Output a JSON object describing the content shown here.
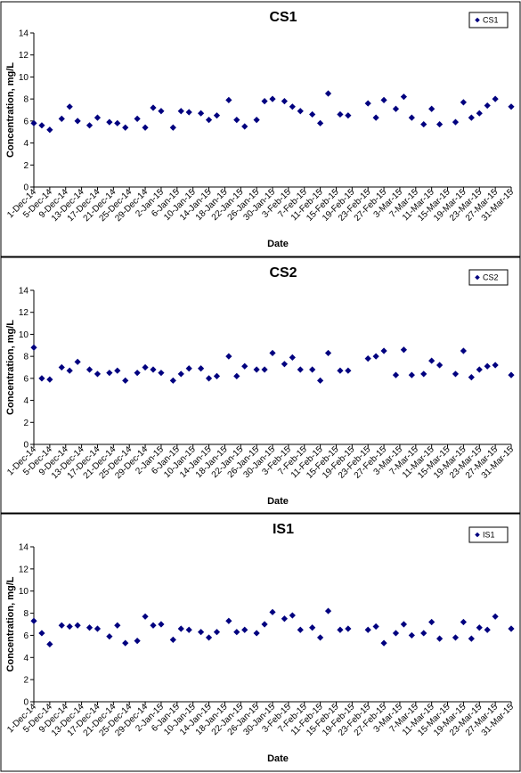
{
  "chart_data": [
    {
      "type": "scatter",
      "title": "CS1",
      "xlabel": "Date",
      "ylabel": "Concentration, mg/L",
      "ylim": [
        0,
        14
      ],
      "yticks": [
        0,
        2,
        4,
        6,
        8,
        10,
        12,
        14
      ],
      "xlim": [
        "2014-12-01",
        "2015-03-31"
      ],
      "xtick_labels": [
        "1-Dec-14",
        "5-Dec-14",
        "9-Dec-14",
        "13-Dec-14",
        "17-Dec-14",
        "21-Dec-14",
        "25-Dec-14",
        "29-Dec-14",
        "2-Jan-15",
        "6-Jan-15",
        "10-Jan-15",
        "14-Jan-15",
        "18-Jan-15",
        "22-Jan-15",
        "26-Jan-15",
        "30-Jan-15",
        "3-Feb-15",
        "7-Feb-15",
        "11-Feb-15",
        "15-Feb-15",
        "19-Feb-15",
        "23-Feb-15",
        "27-Feb-15",
        "3-Mar-15",
        "7-Mar-15",
        "11-Mar-15",
        "15-Mar-15",
        "19-Mar-15",
        "23-Mar-15",
        "27-Mar-15",
        "31-Mar-15"
      ],
      "legend": "top-right",
      "series": [
        {
          "name": "CS1",
          "color": "#00007F",
          "points": [
            [
              "2014-12-01",
              5.8
            ],
            [
              "2014-12-03",
              5.6
            ],
            [
              "2014-12-05",
              5.2
            ],
            [
              "2014-12-08",
              6.2
            ],
            [
              "2014-12-10",
              7.3
            ],
            [
              "2014-12-12",
              6.0
            ],
            [
              "2014-12-15",
              5.6
            ],
            [
              "2014-12-17",
              6.3
            ],
            [
              "2014-12-20",
              5.9
            ],
            [
              "2014-12-22",
              5.8
            ],
            [
              "2014-12-24",
              5.4
            ],
            [
              "2014-12-27",
              6.2
            ],
            [
              "2014-12-29",
              5.4
            ],
            [
              "2014-12-31",
              7.2
            ],
            [
              "2015-01-02",
              6.9
            ],
            [
              "2015-01-05",
              5.4
            ],
            [
              "2015-01-07",
              6.9
            ],
            [
              "2015-01-09",
              6.8
            ],
            [
              "2015-01-12",
              6.7
            ],
            [
              "2015-01-14",
              6.1
            ],
            [
              "2015-01-16",
              6.5
            ],
            [
              "2015-01-19",
              7.9
            ],
            [
              "2015-01-21",
              6.1
            ],
            [
              "2015-01-23",
              5.5
            ],
            [
              "2015-01-26",
              6.1
            ],
            [
              "2015-01-28",
              7.8
            ],
            [
              "2015-01-30",
              8.0
            ],
            [
              "2015-02-02",
              7.8
            ],
            [
              "2015-02-04",
              7.3
            ],
            [
              "2015-02-06",
              6.9
            ],
            [
              "2015-02-09",
              6.6
            ],
            [
              "2015-02-11",
              5.8
            ],
            [
              "2015-02-13",
              8.5
            ],
            [
              "2015-02-16",
              6.6
            ],
            [
              "2015-02-18",
              6.5
            ],
            [
              "2015-02-23",
              7.6
            ],
            [
              "2015-02-25",
              6.3
            ],
            [
              "2015-02-27",
              7.9
            ],
            [
              "2015-03-02",
              7.1
            ],
            [
              "2015-03-04",
              8.2
            ],
            [
              "2015-03-06",
              6.3
            ],
            [
              "2015-03-09",
              5.7
            ],
            [
              "2015-03-11",
              7.1
            ],
            [
              "2015-03-13",
              5.7
            ],
            [
              "2015-03-17",
              5.9
            ],
            [
              "2015-03-19",
              7.7
            ],
            [
              "2015-03-21",
              6.3
            ],
            [
              "2015-03-23",
              6.7
            ],
            [
              "2015-03-25",
              7.4
            ],
            [
              "2015-03-27",
              8.0
            ],
            [
              "2015-03-31",
              7.3
            ]
          ]
        }
      ]
    },
    {
      "type": "scatter",
      "title": "CS2",
      "xlabel": "Date",
      "ylabel": "Concentration, mg/L",
      "ylim": [
        0,
        14
      ],
      "yticks": [
        0,
        2,
        4,
        6,
        8,
        10,
        12,
        14
      ],
      "xlim": [
        "2014-12-01",
        "2015-03-31"
      ],
      "xtick_labels": [
        "1-Dec-14",
        "5-Dec-14",
        "9-Dec-14",
        "13-Dec-14",
        "17-Dec-14",
        "21-Dec-14",
        "25-Dec-14",
        "29-Dec-14",
        "2-Jan-15",
        "6-Jan-15",
        "10-Jan-15",
        "14-Jan-15",
        "18-Jan-15",
        "22-Jan-15",
        "26-Jan-15",
        "30-Jan-15",
        "3-Feb-15",
        "7-Feb-15",
        "11-Feb-15",
        "15-Feb-15",
        "19-Feb-15",
        "23-Feb-15",
        "27-Feb-15",
        "3-Mar-15",
        "7-Mar-15",
        "11-Mar-15",
        "15-Mar-15",
        "19-Mar-15",
        "23-Mar-15",
        "27-Mar-15",
        "31-Mar-15"
      ],
      "legend": "top-right",
      "series": [
        {
          "name": "CS2",
          "color": "#00007F",
          "points": [
            [
              "2014-12-01",
              8.8
            ],
            [
              "2014-12-03",
              6.0
            ],
            [
              "2014-12-05",
              5.9
            ],
            [
              "2014-12-08",
              7.0
            ],
            [
              "2014-12-10",
              6.7
            ],
            [
              "2014-12-12",
              7.5
            ],
            [
              "2014-12-15",
              6.8
            ],
            [
              "2014-12-17",
              6.4
            ],
            [
              "2014-12-20",
              6.5
            ],
            [
              "2014-12-22",
              6.7
            ],
            [
              "2014-12-24",
              5.8
            ],
            [
              "2014-12-27",
              6.5
            ],
            [
              "2014-12-29",
              7.0
            ],
            [
              "2014-12-31",
              6.8
            ],
            [
              "2015-01-02",
              6.5
            ],
            [
              "2015-01-05",
              5.8
            ],
            [
              "2015-01-07",
              6.4
            ],
            [
              "2015-01-09",
              6.9
            ],
            [
              "2015-01-12",
              6.9
            ],
            [
              "2015-01-14",
              6.0
            ],
            [
              "2015-01-16",
              6.2
            ],
            [
              "2015-01-19",
              8.0
            ],
            [
              "2015-01-21",
              6.2
            ],
            [
              "2015-01-23",
              7.1
            ],
            [
              "2015-01-26",
              6.8
            ],
            [
              "2015-01-28",
              6.8
            ],
            [
              "2015-01-30",
              8.3
            ],
            [
              "2015-02-02",
              7.3
            ],
            [
              "2015-02-04",
              7.9
            ],
            [
              "2015-02-06",
              6.8
            ],
            [
              "2015-02-09",
              6.8
            ],
            [
              "2015-02-11",
              5.8
            ],
            [
              "2015-02-13",
              8.3
            ],
            [
              "2015-02-16",
              6.7
            ],
            [
              "2015-02-18",
              6.7
            ],
            [
              "2015-02-23",
              7.8
            ],
            [
              "2015-02-25",
              8.0
            ],
            [
              "2015-02-27",
              8.5
            ],
            [
              "2015-03-02",
              6.3
            ],
            [
              "2015-03-04",
              8.6
            ],
            [
              "2015-03-06",
              6.3
            ],
            [
              "2015-03-09",
              6.4
            ],
            [
              "2015-03-11",
              7.6
            ],
            [
              "2015-03-13",
              7.2
            ],
            [
              "2015-03-17",
              6.4
            ],
            [
              "2015-03-19",
              8.5
            ],
            [
              "2015-03-21",
              6.1
            ],
            [
              "2015-03-23",
              6.8
            ],
            [
              "2015-03-25",
              7.1
            ],
            [
              "2015-03-27",
              7.2
            ],
            [
              "2015-03-31",
              6.3
            ]
          ]
        }
      ]
    },
    {
      "type": "scatter",
      "title": "IS1",
      "xlabel": "Date",
      "ylabel": "Concentration, mg/L",
      "ylim": [
        0,
        14
      ],
      "yticks": [
        0,
        2,
        4,
        6,
        8,
        10,
        12,
        14
      ],
      "xlim": [
        "2014-12-01",
        "2015-03-31"
      ],
      "xtick_labels": [
        "1-Dec-14",
        "5-Dec-14",
        "9-Dec-14",
        "13-Dec-14",
        "17-Dec-14",
        "21-Dec-14",
        "25-Dec-14",
        "29-Dec-14",
        "2-Jan-15",
        "6-Jan-15",
        "10-Jan-15",
        "14-Jan-15",
        "18-Jan-15",
        "22-Jan-15",
        "26-Jan-15",
        "30-Jan-15",
        "3-Feb-15",
        "7-Feb-15",
        "11-Feb-15",
        "15-Feb-15",
        "19-Feb-15",
        "23-Feb-15",
        "27-Feb-15",
        "3-Mar-15",
        "7-Mar-15",
        "11-Mar-15",
        "15-Mar-15",
        "19-Mar-15",
        "23-Mar-15",
        "27-Mar-15",
        "31-Mar-15"
      ],
      "legend": "top-right",
      "series": [
        {
          "name": "IS1",
          "color": "#00007F",
          "points": [
            [
              "2014-12-01",
              7.3
            ],
            [
              "2014-12-03",
              6.2
            ],
            [
              "2014-12-05",
              5.2
            ],
            [
              "2014-12-08",
              6.9
            ],
            [
              "2014-12-10",
              6.8
            ],
            [
              "2014-12-12",
              6.9
            ],
            [
              "2014-12-15",
              6.7
            ],
            [
              "2014-12-17",
              6.6
            ],
            [
              "2014-12-20",
              5.9
            ],
            [
              "2014-12-22",
              6.9
            ],
            [
              "2014-12-24",
              5.3
            ],
            [
              "2014-12-27",
              5.5
            ],
            [
              "2014-12-29",
              7.7
            ],
            [
              "2014-12-31",
              6.9
            ],
            [
              "2015-01-02",
              7.0
            ],
            [
              "2015-01-05",
              5.6
            ],
            [
              "2015-01-07",
              6.6
            ],
            [
              "2015-01-09",
              6.5
            ],
            [
              "2015-01-12",
              6.3
            ],
            [
              "2015-01-14",
              5.8
            ],
            [
              "2015-01-16",
              6.3
            ],
            [
              "2015-01-19",
              7.3
            ],
            [
              "2015-01-21",
              6.3
            ],
            [
              "2015-01-23",
              6.5
            ],
            [
              "2015-01-26",
              6.2
            ],
            [
              "2015-01-28",
              7.0
            ],
            [
              "2015-01-30",
              8.1
            ],
            [
              "2015-02-02",
              7.5
            ],
            [
              "2015-02-04",
              7.8
            ],
            [
              "2015-02-06",
              6.5
            ],
            [
              "2015-02-09",
              6.7
            ],
            [
              "2015-02-11",
              5.8
            ],
            [
              "2015-02-13",
              8.2
            ],
            [
              "2015-02-16",
              6.5
            ],
            [
              "2015-02-18",
              6.6
            ],
            [
              "2015-02-23",
              6.5
            ],
            [
              "2015-02-25",
              6.8
            ],
            [
              "2015-02-27",
              5.3
            ],
            [
              "2015-03-02",
              6.2
            ],
            [
              "2015-03-04",
              7.0
            ],
            [
              "2015-03-06",
              6.0
            ],
            [
              "2015-03-09",
              6.2
            ],
            [
              "2015-03-11",
              7.2
            ],
            [
              "2015-03-13",
              5.7
            ],
            [
              "2015-03-17",
              5.8
            ],
            [
              "2015-03-19",
              7.2
            ],
            [
              "2015-03-21",
              5.7
            ],
            [
              "2015-03-23",
              6.7
            ],
            [
              "2015-03-25",
              6.5
            ],
            [
              "2015-03-27",
              7.7
            ],
            [
              "2015-03-31",
              6.6
            ]
          ]
        }
      ]
    }
  ]
}
